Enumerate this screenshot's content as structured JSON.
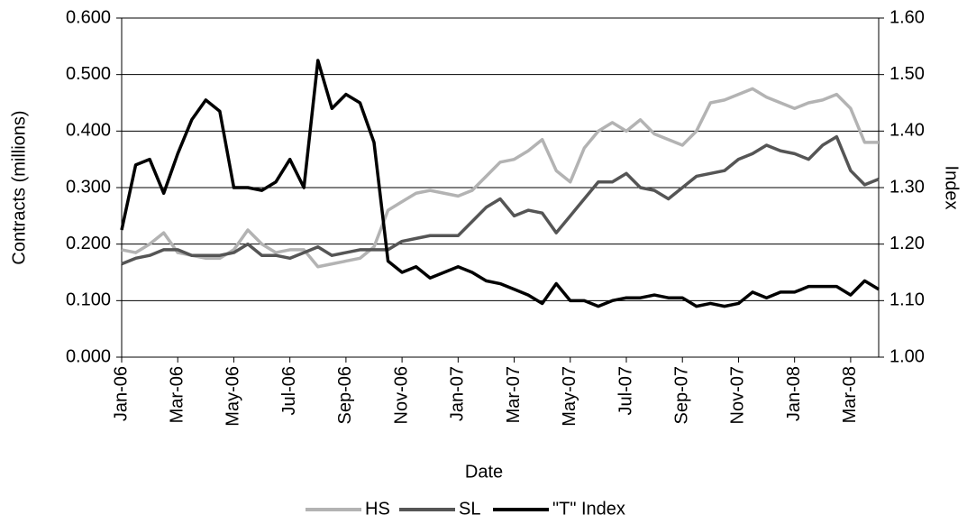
{
  "chart_data": {
    "type": "line",
    "x_label": "Date",
    "y_label": "Contracts (millions)",
    "y2_label": "Index",
    "categories": [
      "Jan-06",
      null,
      null,
      null,
      "Mar-06",
      null,
      null,
      null,
      "May-06",
      null,
      null,
      null,
      "Jul-06",
      null,
      null,
      null,
      "Sep-06",
      null,
      null,
      null,
      "Nov-06",
      null,
      null,
      null,
      "Jan-07",
      null,
      null,
      null,
      "Mar-07",
      null,
      null,
      null,
      "May-07",
      null,
      null,
      null,
      "Jul-07",
      null,
      null,
      null,
      "Sep-07",
      null,
      null,
      null,
      "Nov-07",
      null,
      null,
      null,
      "Jan-08",
      null,
      null,
      null,
      "Mar-08",
      null,
      null
    ],
    "series": [
      {
        "name": "HS",
        "color": "#b3b3b3",
        "axis": "y",
        "values": [
          0.19,
          0.185,
          0.2,
          0.22,
          0.185,
          0.18,
          0.175,
          0.175,
          0.19,
          0.225,
          0.2,
          0.185,
          0.19,
          0.19,
          0.16,
          0.165,
          0.17,
          0.175,
          0.195,
          0.26,
          0.275,
          0.29,
          0.295,
          0.29,
          0.285,
          0.295,
          0.32,
          0.345,
          0.35,
          0.365,
          0.385,
          0.33,
          0.31,
          0.37,
          0.4,
          0.415,
          0.4,
          0.42,
          0.395,
          0.385,
          0.375,
          0.4,
          0.45,
          0.455,
          0.465,
          0.475,
          0.46,
          0.45,
          0.44,
          0.45,
          0.455,
          0.465,
          0.44,
          0.38,
          0.38
        ]
      },
      {
        "name": "SL",
        "color": "#555555",
        "axis": "y",
        "values": [
          0.165,
          0.175,
          0.18,
          0.19,
          0.19,
          0.18,
          0.18,
          0.18,
          0.185,
          0.2,
          0.18,
          0.18,
          0.175,
          0.185,
          0.195,
          0.18,
          0.185,
          0.19,
          0.19,
          0.19,
          0.205,
          0.21,
          0.215,
          0.215,
          0.215,
          0.24,
          0.265,
          0.28,
          0.25,
          0.26,
          0.255,
          0.22,
          0.25,
          0.28,
          0.31,
          0.31,
          0.325,
          0.3,
          0.295,
          0.28,
          0.3,
          0.32,
          0.325,
          0.33,
          0.35,
          0.36,
          0.375,
          0.365,
          0.36,
          0.35,
          0.375,
          0.39,
          0.33,
          0.305,
          0.315
        ]
      },
      {
        "name": "\"T\" Index",
        "color": "#000000",
        "axis": "y2",
        "values": [
          1.225,
          1.34,
          1.35,
          1.29,
          1.36,
          1.42,
          1.455,
          1.435,
          1.3,
          1.3,
          1.295,
          1.31,
          1.35,
          1.3,
          1.525,
          1.44,
          1.465,
          1.45,
          1.38,
          1.17,
          1.15,
          1.16,
          1.14,
          1.15,
          1.16,
          1.15,
          1.135,
          1.13,
          1.12,
          1.11,
          1.095,
          1.13,
          1.1,
          1.1,
          1.09,
          1.1,
          1.105,
          1.105,
          1.11,
          1.105,
          1.105,
          1.09,
          1.095,
          1.09,
          1.095,
          1.115,
          1.105,
          1.115,
          1.115,
          1.125,
          1.125,
          1.125,
          1.11,
          1.135,
          1.12
        ]
      }
    ],
    "ylim": [
      0,
      0.6
    ],
    "yticks": [
      {
        "value": 0,
        "label": "0.000"
      },
      {
        "value": 0.1,
        "label": "0.100"
      },
      {
        "value": 0.2,
        "label": "0.200"
      },
      {
        "value": 0.3,
        "label": "0.300"
      },
      {
        "value": 0.4,
        "label": "0.400"
      },
      {
        "value": 0.5,
        "label": "0.500"
      },
      {
        "value": 0.6,
        "label": "0.600"
      }
    ],
    "y2lim": [
      1,
      1.6
    ],
    "y2ticks": [
      {
        "value": 1,
        "label": "1.00"
      },
      {
        "value": 1.1,
        "label": "1.10"
      },
      {
        "value": 1.2,
        "label": "1.20"
      },
      {
        "value": 1.3,
        "label": "1.30"
      },
      {
        "value": 1.4,
        "label": "1.40"
      },
      {
        "value": 1.5,
        "label": "1.50"
      },
      {
        "value": 1.6,
        "label": "1.60"
      }
    ],
    "grid": true,
    "legend": "bottom"
  }
}
